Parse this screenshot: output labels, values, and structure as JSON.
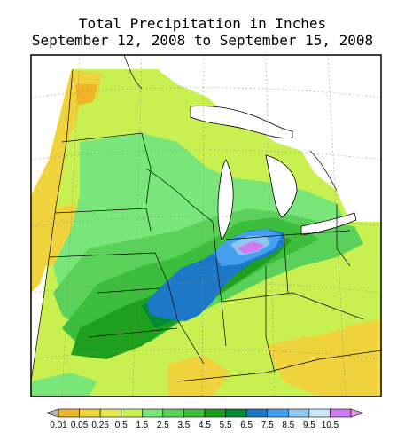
{
  "title": "Total Precipitation in Inches",
  "subtitle": "September 12, 2008 to September 15, 2008",
  "legend": {
    "labels": [
      "0.01",
      "0.05",
      "0.25",
      "0.5",
      "1.5",
      "2.5",
      "3.5",
      "4.5",
      "5.5",
      "6.5",
      "7.5",
      "8.5",
      "9.5",
      "10.5"
    ],
    "colors": [
      "#b4b4b4",
      "#f0b428",
      "#f0d23c",
      "#e6e650",
      "#c8f050",
      "#78e678",
      "#5ad25a",
      "#3cbe3c",
      "#1ea01e",
      "#008c32",
      "#1e78c8",
      "#46a0f0",
      "#8cc8f0",
      "#c8e6fa",
      "#d278f0",
      "#e696d2"
    ]
  },
  "colors": {
    "water": "#ffffff",
    "no_data": "#ffffff",
    "border": "#000000",
    "grid": "#888888"
  }
}
